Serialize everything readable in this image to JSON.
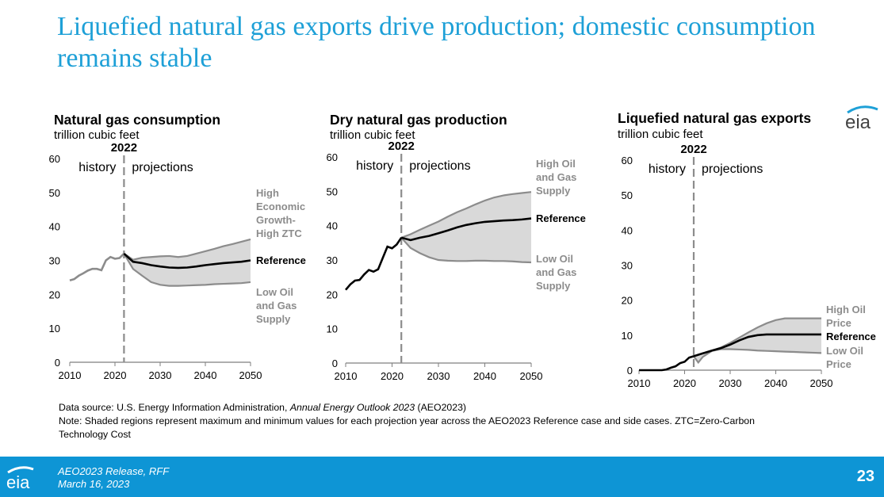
{
  "slide": {
    "title": "Liquefied natural gas exports drive production; domestic consumption remains stable"
  },
  "colors": {
    "title": "#1ea0d7",
    "footer": "#0e95d5",
    "reference": "#000000",
    "side_case": "#8c8c8c",
    "band": "#d9d9d9"
  },
  "chart_data": [
    {
      "type": "line",
      "title": "Natural gas consumption",
      "ylabel": "trillion cubic feet",
      "ylim": [
        0,
        60
      ],
      "xlim": [
        2010,
        2050
      ],
      "xticks": [
        2010,
        2020,
        2030,
        2040,
        2050
      ],
      "yticks": [
        0,
        10,
        20,
        30,
        40,
        50,
        60
      ],
      "divider_year": 2022,
      "divider_label": "2022",
      "history_label": "history",
      "projections_label": "projections",
      "history": {
        "x": [
          2010,
          2011,
          2012,
          2013,
          2014,
          2015,
          2016,
          2017,
          2018,
          2019,
          2020,
          2021,
          2022
        ],
        "y": [
          24.1,
          24.5,
          25.5,
          26.2,
          27.0,
          27.5,
          27.5,
          27.1,
          30.0,
          31.0,
          30.5,
          30.7,
          32.0
        ]
      },
      "series": [
        {
          "name": "High Economic Growth-High ZTC",
          "role": "upper",
          "x": [
            2022,
            2024,
            2026,
            2028,
            2030,
            2032,
            2034,
            2036,
            2038,
            2040,
            2042,
            2044,
            2046,
            2048,
            2050
          ],
          "y": [
            32.0,
            30.2,
            30.8,
            31.0,
            31.2,
            31.3,
            31.0,
            31.3,
            32.0,
            32.7,
            33.4,
            34.2,
            34.8,
            35.5,
            36.2
          ]
        },
        {
          "name": "Reference",
          "role": "reference",
          "x": [
            2022,
            2024,
            2026,
            2028,
            2030,
            2032,
            2034,
            2036,
            2038,
            2040,
            2042,
            2044,
            2046,
            2048,
            2050
          ],
          "y": [
            32.0,
            29.6,
            29.2,
            28.6,
            28.2,
            27.9,
            27.8,
            27.9,
            28.2,
            28.6,
            28.9,
            29.2,
            29.4,
            29.6,
            30.0
          ]
        },
        {
          "name": "Low Oil and Gas Supply",
          "role": "lower",
          "x": [
            2022,
            2024,
            2026,
            2028,
            2030,
            2032,
            2034,
            2036,
            2038,
            2040,
            2042,
            2044,
            2046,
            2048,
            2050
          ],
          "y": [
            32.0,
            27.5,
            25.5,
            23.6,
            22.8,
            22.5,
            22.5,
            22.6,
            22.7,
            22.8,
            23.0,
            23.1,
            23.2,
            23.3,
            23.6
          ]
        }
      ]
    },
    {
      "type": "line",
      "title": "Dry natural gas production",
      "ylabel": "trillion cubic feet",
      "ylim": [
        0,
        60
      ],
      "xlim": [
        2010,
        2050
      ],
      "xticks": [
        2010,
        2020,
        2030,
        2040,
        2050
      ],
      "yticks": [
        0,
        10,
        20,
        30,
        40,
        50,
        60
      ],
      "divider_year": 2022,
      "divider_label": "2022",
      "history_label": "history",
      "projections_label": "projections",
      "history": {
        "x": [
          2010,
          2011,
          2012,
          2013,
          2014,
          2015,
          2016,
          2017,
          2018,
          2019,
          2020,
          2021,
          2022
        ],
        "y": [
          21.3,
          22.9,
          24.0,
          24.2,
          25.8,
          27.1,
          26.6,
          27.3,
          30.6,
          33.9,
          33.4,
          34.5,
          36.5
        ]
      },
      "series": [
        {
          "name": "High Oil and Gas Supply",
          "role": "upper",
          "x": [
            2022,
            2024,
            2026,
            2028,
            2030,
            2032,
            2034,
            2036,
            2038,
            2040,
            2042,
            2044,
            2046,
            2048,
            2050
          ],
          "y": [
            36.5,
            37.5,
            38.8,
            40.0,
            41.2,
            42.6,
            43.9,
            45.0,
            46.2,
            47.3,
            48.2,
            48.8,
            49.2,
            49.5,
            49.8
          ]
        },
        {
          "name": "Reference",
          "role": "reference",
          "x": [
            2022,
            2024,
            2026,
            2028,
            2030,
            2032,
            2034,
            2036,
            2038,
            2040,
            2042,
            2044,
            2046,
            2048,
            2050
          ],
          "y": [
            36.5,
            35.8,
            36.5,
            37.0,
            37.8,
            38.6,
            39.5,
            40.2,
            40.7,
            41.1,
            41.3,
            41.5,
            41.6,
            41.8,
            42.1
          ]
        },
        {
          "name": "Low Oil and Gas Supply",
          "role": "lower",
          "x": [
            2022,
            2024,
            2026,
            2028,
            2030,
            2032,
            2034,
            2036,
            2038,
            2040,
            2042,
            2044,
            2046,
            2048,
            2050
          ],
          "y": [
            36.5,
            33.5,
            32.0,
            30.8,
            30.0,
            29.8,
            29.7,
            29.7,
            29.8,
            29.8,
            29.7,
            29.7,
            29.6,
            29.4,
            29.3
          ]
        }
      ]
    },
    {
      "type": "line",
      "title": "Liquefied natural gas exports",
      "ylabel": "trillion cubic feet",
      "ylim": [
        0,
        60
      ],
      "xlim": [
        2010,
        2050
      ],
      "xticks": [
        2010,
        2020,
        2030,
        2040,
        2050
      ],
      "yticks": [
        0,
        10,
        20,
        30,
        40,
        50,
        60
      ],
      "divider_year": 2022,
      "divider_label": "2022",
      "history_label": "history",
      "projections_label": "projections",
      "history": {
        "x": [
          2010,
          2011,
          2012,
          2013,
          2014,
          2015,
          2016,
          2017,
          2018,
          2019,
          2020,
          2021,
          2022
        ],
        "y": [
          0.0,
          0.0,
          0.0,
          0.0,
          0.0,
          0.0,
          0.2,
          0.7,
          1.1,
          2.0,
          2.4,
          3.6,
          4.0
        ]
      },
      "series": [
        {
          "name": "High Oil Price",
          "role": "upper",
          "x": [
            2022,
            2024,
            2026,
            2028,
            2030,
            2032,
            2034,
            2036,
            2038,
            2040,
            2042,
            2044,
            2046,
            2048,
            2050
          ],
          "y": [
            4.0,
            4.8,
            5.6,
            6.5,
            7.8,
            9.3,
            10.8,
            12.2,
            13.4,
            14.3,
            14.8,
            14.8,
            14.8,
            14.8,
            14.8
          ]
        },
        {
          "name": "Reference",
          "role": "reference",
          "x": [
            2022,
            2024,
            2026,
            2028,
            2030,
            2032,
            2034,
            2036,
            2038,
            2040,
            2042,
            2044,
            2046,
            2048,
            2050
          ],
          "y": [
            4.0,
            4.8,
            5.6,
            6.3,
            7.3,
            8.5,
            9.5,
            10.0,
            10.2,
            10.2,
            10.2,
            10.2,
            10.2,
            10.2,
            10.2
          ]
        },
        {
          "name": "Low Oil Price",
          "role": "lower",
          "x": [
            2022,
            2023,
            2024,
            2026,
            2028,
            2030,
            2032,
            2034,
            2036,
            2038,
            2040,
            2042,
            2044,
            2046,
            2048,
            2050
          ],
          "y": [
            4.0,
            2.2,
            3.8,
            5.5,
            6.0,
            6.0,
            5.9,
            5.8,
            5.6,
            5.5,
            5.4,
            5.3,
            5.2,
            5.1,
            5.0,
            4.9
          ]
        }
      ]
    }
  ],
  "labels": {
    "c1_upper": [
      "High",
      "Economic",
      "Growth-",
      "High ZTC"
    ],
    "c1_ref": "Reference",
    "c1_lower": [
      "Low Oil",
      "and Gas",
      "Supply"
    ],
    "c2_upper": [
      "High Oil",
      "and Gas",
      "Supply"
    ],
    "c2_ref": "Reference",
    "c2_lower": [
      "Low Oil",
      "and Gas",
      "Supply"
    ],
    "c3_upper": [
      "High Oil",
      "Price"
    ],
    "c3_ref": "Reference",
    "c3_lower": [
      "Low Oil",
      "Price"
    ]
  },
  "notes": {
    "source_prefix": "Data source: U.S. Energy Information Administration, ",
    "source_italic": "Annual Energy Outlook 2023",
    "source_suffix": " (AEO2023)",
    "note": "Note: Shaded regions represent maximum and minimum values for each projection year across the AEO2023 Reference case and side cases. ZTC=Zero-Carbon Technology Cost"
  },
  "logo_text": "eia",
  "footer": {
    "line1": "AEO2023 Release, RFF",
    "line2": "March 16, 2023",
    "page_number": "23"
  }
}
